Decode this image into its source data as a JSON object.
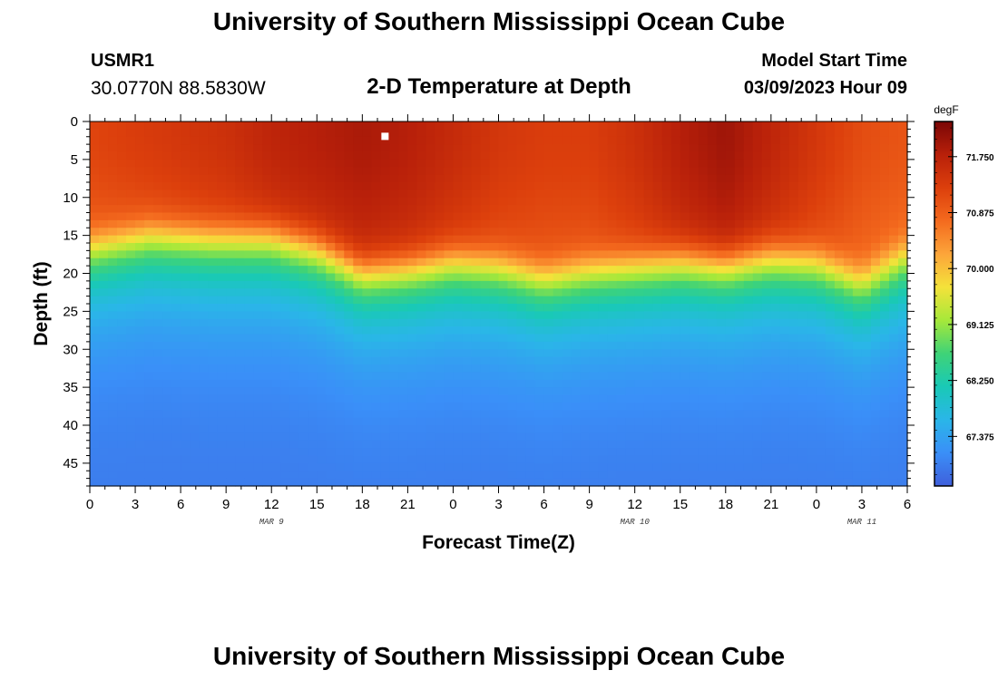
{
  "page": {
    "title": "University of Southern Mississippi Ocean Cube",
    "bottom_title": "University of Southern Mississippi Ocean Cube",
    "station_id": "USMR1",
    "station_coords": "30.0770N  88.5830W",
    "model_label": "Model Start Time",
    "model_time": "03/09/2023 Hour 09"
  },
  "chart_data": {
    "type": "heatmap",
    "title": "2-D Temperature at Depth",
    "xlabel": "Forecast Time(Z)",
    "ylabel": "Depth (ft)",
    "x_hours_from_start": [
      0,
      54
    ],
    "x_tick_labels": [
      "0",
      "3",
      "6",
      "9",
      "12",
      "15",
      "18",
      "21",
      "0",
      "3",
      "6",
      "9",
      "12",
      "15",
      "18",
      "21",
      "0",
      "3",
      "6"
    ],
    "date_labels": [
      {
        "label": "MAR 9",
        "hour": 12
      },
      {
        "label": "MAR 10",
        "hour": 36
      },
      {
        "label": "MAR 11",
        "hour": 51
      }
    ],
    "ylim": [
      0,
      48
    ],
    "y_ticks": [
      0,
      5,
      10,
      15,
      20,
      25,
      30,
      35,
      40,
      45
    ],
    "colorbar": {
      "unit": "degF",
      "range": [
        66.6,
        72.3
      ],
      "ticks": [
        71.75,
        70.875,
        70.0,
        69.125,
        68.25,
        67.375
      ],
      "tick_labels": [
        "71.750",
        "70.875",
        "70.000",
        "69.125",
        "68.250",
        "67.375"
      ],
      "colors": [
        "#3f5fdb",
        "#3a8ff8",
        "#2ab6e8",
        "#19c9b6",
        "#3fd377",
        "#a6e83a",
        "#f4e23a",
        "#fca53a",
        "#f46a1e",
        "#dc3f0c",
        "#b8200a",
        "#7a0606"
      ]
    },
    "thermocline_depth_ft": [
      [
        0,
        15.5
      ],
      [
        4,
        14.0
      ],
      [
        8,
        14.5
      ],
      [
        12,
        14.5
      ],
      [
        15,
        16.0
      ],
      [
        18,
        19.0
      ],
      [
        21,
        18.5
      ],
      [
        24,
        17.5
      ],
      [
        27,
        18.0
      ],
      [
        30,
        19.5
      ],
      [
        33,
        18.5
      ],
      [
        36,
        18.0
      ],
      [
        39,
        17.5
      ],
      [
        42,
        18.0
      ],
      [
        45,
        17.0
      ],
      [
        48,
        17.5
      ],
      [
        51,
        20.0
      ],
      [
        54,
        16.5
      ]
    ],
    "surface_temperature_degF": [
      [
        0,
        71.2
      ],
      [
        3,
        71.3
      ],
      [
        6,
        71.4
      ],
      [
        9,
        71.5
      ],
      [
        12,
        71.7
      ],
      [
        15,
        71.8
      ],
      [
        18,
        71.9
      ],
      [
        21,
        71.8
      ],
      [
        24,
        71.6
      ],
      [
        27,
        71.4
      ],
      [
        30,
        71.3
      ],
      [
        33,
        71.3
      ],
      [
        36,
        71.5
      ],
      [
        39,
        71.8
      ],
      [
        42,
        72.0
      ],
      [
        45,
        71.7
      ],
      [
        48,
        71.4
      ],
      [
        51,
        71.1
      ],
      [
        54,
        71.0
      ]
    ],
    "bottom_temperature_degF": 66.9,
    "marker": {
      "hour": 19.5,
      "depth_ft": 1
    }
  }
}
